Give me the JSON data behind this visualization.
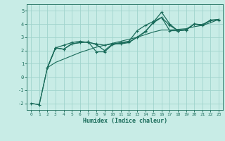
{
  "xlabel": "Humidex (Indice chaleur)",
  "background_color": "#c8ece6",
  "grid_color": "#a0d4cc",
  "line_color": "#1a6b5a",
  "xlim": [
    -0.5,
    23.5
  ],
  "ylim": [
    -2.5,
    5.5
  ],
  "xticks": [
    0,
    1,
    2,
    3,
    4,
    5,
    6,
    7,
    8,
    9,
    10,
    11,
    12,
    13,
    14,
    15,
    16,
    17,
    18,
    19,
    20,
    21,
    22,
    23
  ],
  "yticks": [
    -2,
    -1,
    0,
    1,
    2,
    3,
    4,
    5
  ],
  "line1_x": [
    0,
    1,
    2,
    3,
    4,
    5,
    6,
    7,
    8,
    9,
    10,
    11,
    12,
    13,
    14,
    15,
    16,
    17,
    18,
    19,
    20,
    21,
    22,
    23
  ],
  "line1_y": [
    -2.0,
    -2.1,
    0.7,
    2.2,
    2.4,
    2.6,
    2.7,
    2.6,
    2.5,
    2.4,
    2.5,
    2.6,
    2.7,
    3.5,
    3.9,
    4.2,
    4.5,
    3.9,
    3.5,
    3.6,
    4.0,
    3.9,
    4.3,
    4.3
  ],
  "line2_x": [
    2,
    3,
    4,
    5,
    6,
    7,
    8,
    9,
    10,
    11,
    12,
    13,
    14,
    15,
    16,
    17,
    18,
    19,
    20,
    21,
    22,
    23
  ],
  "line2_y": [
    0.7,
    2.2,
    2.1,
    2.5,
    2.6,
    2.65,
    1.9,
    1.9,
    2.45,
    2.55,
    2.65,
    3.0,
    3.45,
    4.1,
    4.5,
    3.5,
    3.5,
    3.55,
    4.0,
    3.95,
    4.3,
    4.35
  ],
  "line3_x": [
    2,
    3,
    4,
    5,
    6,
    7,
    8,
    9,
    10,
    11,
    12,
    13,
    14,
    15,
    16,
    17,
    18,
    19,
    20,
    21,
    22,
    23
  ],
  "line3_y": [
    0.7,
    2.2,
    2.1,
    2.5,
    2.6,
    2.65,
    2.45,
    2.0,
    2.5,
    2.5,
    2.6,
    3.0,
    3.4,
    4.15,
    4.9,
    4.0,
    3.5,
    3.55,
    4.0,
    3.95,
    4.25,
    4.35
  ],
  "line4_x": [
    0,
    1,
    2,
    3,
    4,
    5,
    6,
    7,
    8,
    9,
    10,
    11,
    12,
    13,
    14,
    15,
    16,
    17,
    18,
    19,
    20,
    21,
    22,
    23
  ],
  "line4_y": [
    -2.0,
    -2.1,
    0.7,
    1.1,
    1.35,
    1.6,
    1.85,
    2.05,
    2.25,
    2.4,
    2.55,
    2.7,
    2.85,
    3.0,
    3.2,
    3.4,
    3.55,
    3.55,
    3.6,
    3.65,
    3.8,
    3.9,
    4.1,
    4.35
  ]
}
